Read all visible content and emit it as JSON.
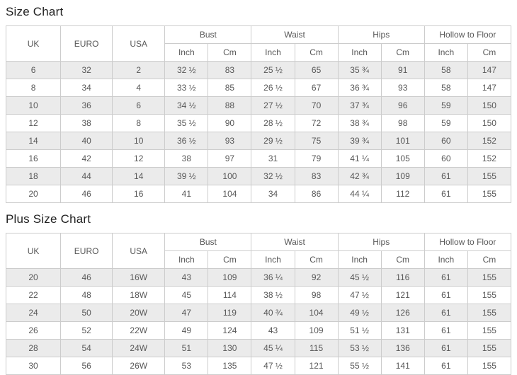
{
  "sections": [
    {
      "title": "Size Chart",
      "base_headers": [
        "UK",
        "EURO",
        "USA"
      ],
      "group_headers": [
        "Bust",
        "Waist",
        "Hips",
        "Hollow to Floor"
      ],
      "unit_headers": [
        "Inch",
        "Cm"
      ],
      "rows": [
        [
          "6",
          "32",
          "2",
          "32 ½",
          "83",
          "25 ½",
          "65",
          "35 ¾",
          "91",
          "58",
          "147"
        ],
        [
          "8",
          "34",
          "4",
          "33 ½",
          "85",
          "26 ½",
          "67",
          "36 ¾",
          "93",
          "58",
          "147"
        ],
        [
          "10",
          "36",
          "6",
          "34 ½",
          "88",
          "27 ½",
          "70",
          "37 ¾",
          "96",
          "59",
          "150"
        ],
        [
          "12",
          "38",
          "8",
          "35 ½",
          "90",
          "28 ½",
          "72",
          "38 ¾",
          "98",
          "59",
          "150"
        ],
        [
          "14",
          "40",
          "10",
          "36 ½",
          "93",
          "29 ½",
          "75",
          "39 ¾",
          "101",
          "60",
          "152"
        ],
        [
          "16",
          "42",
          "12",
          "38",
          "97",
          "31",
          "79",
          "41 ¼",
          "105",
          "60",
          "152"
        ],
        [
          "18",
          "44",
          "14",
          "39 ½",
          "100",
          "32 ½",
          "83",
          "42 ¾",
          "109",
          "61",
          "155"
        ],
        [
          "20",
          "46",
          "16",
          "41",
          "104",
          "34",
          "86",
          "44 ¼",
          "112",
          "61",
          "155"
        ]
      ]
    },
    {
      "title": "Plus Size Chart",
      "base_headers": [
        "UK",
        "EURO",
        "USA"
      ],
      "group_headers": [
        "Bust",
        "Waist",
        "Hips",
        "Hollow to Floor"
      ],
      "unit_headers": [
        "Inch",
        "Cm"
      ],
      "rows": [
        [
          "20",
          "46",
          "16W",
          "43",
          "109",
          "36 ¼",
          "92",
          "45 ½",
          "116",
          "61",
          "155"
        ],
        [
          "22",
          "48",
          "18W",
          "45",
          "114",
          "38 ½",
          "98",
          "47 ½",
          "121",
          "61",
          "155"
        ],
        [
          "24",
          "50",
          "20W",
          "47",
          "119",
          "40 ¾",
          "104",
          "49 ½",
          "126",
          "61",
          "155"
        ],
        [
          "26",
          "52",
          "22W",
          "49",
          "124",
          "43",
          "109",
          "51 ½",
          "131",
          "61",
          "155"
        ],
        [
          "28",
          "54",
          "24W",
          "51",
          "130",
          "45 ¼",
          "115",
          "53 ½",
          "136",
          "61",
          "155"
        ],
        [
          "30",
          "56",
          "26W",
          "53",
          "135",
          "47 ½",
          "121",
          "55 ½",
          "141",
          "61",
          "155"
        ]
      ]
    }
  ],
  "colors": {
    "row_alt_background": "#ebebeb",
    "border": "#cccccc",
    "cell_text": "#585858",
    "title_text": "#222222",
    "page_background": "#ffffff"
  }
}
